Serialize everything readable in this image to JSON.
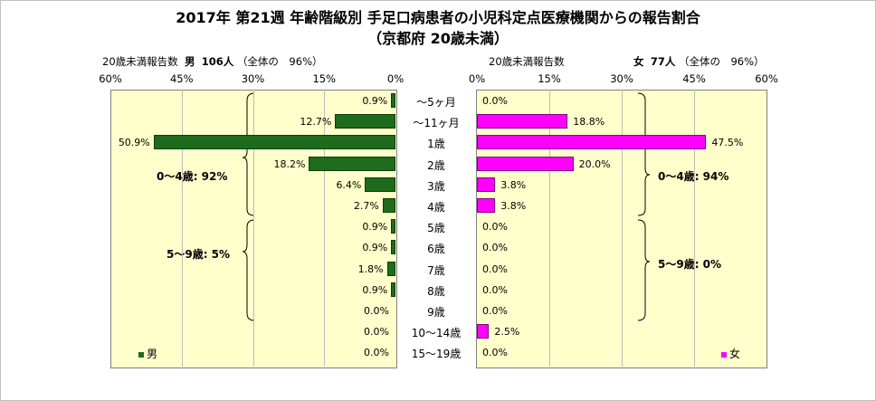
{
  "title_line1": "2017年 第21週 年齢階級別 手足口病患者の小児科定点医療機関からの報告割合",
  "title_line2": "（京都府 20歳未満）",
  "left_header": "20歳未満報告数",
  "left_sex": "男",
  "left_count": "106人",
  "left_share": "（全体の　96%）",
  "right_header": "20歳未満報告数",
  "right_sex": "女",
  "right_count": "77人",
  "right_share": "（全体の　96%）",
  "left_ticks": [
    "60%",
    "45%",
    "30%",
    "15%",
    "0%"
  ],
  "right_ticks": [
    "0%",
    "15%",
    "30%",
    "45%",
    "60%"
  ],
  "left_groups": [
    "0～4歳: 92%",
    "5～9歳: 5%"
  ],
  "right_groups": [
    "0～4歳: 94%",
    "5～9歳: 0%"
  ],
  "legend_male": "男",
  "legend_female": "女",
  "colors": {
    "male": "#1e6b1e",
    "female": "#ff00ff",
    "plot_bg": "#ffffcc"
  },
  "chart_data": {
    "type": "bar",
    "title": "2017年 第21週 年齢階級別 手足口病患者の小児科定点医療機関からの報告割合",
    "subtitle": "（京都府 20歳未満）",
    "categories": [
      "～5ヶ月",
      "～11ヶ月",
      "1歳",
      "2歳",
      "3歳",
      "4歳",
      "5歳",
      "6歳",
      "7歳",
      "8歳",
      "9歳",
      "10～14歳",
      "15～19歳"
    ],
    "series": [
      {
        "name": "男",
        "values": [
          0.9,
          12.7,
          50.9,
          18.2,
          6.4,
          2.7,
          0.9,
          0.9,
          1.8,
          0.9,
          0.0,
          0.0,
          0.0
        ],
        "labels": [
          "0.9%",
          "12.7%",
          "50.9%",
          "18.2%",
          "6.4%",
          "2.7%",
          "0.9%",
          "0.9%",
          "1.8%",
          "0.9%",
          "0.0%",
          "0.0%",
          "0.0%"
        ]
      },
      {
        "name": "女",
        "values": [
          0.0,
          18.8,
          47.5,
          20.0,
          3.8,
          3.8,
          0.0,
          0.0,
          0.0,
          0.0,
          0.0,
          2.5,
          0.0
        ],
        "labels": [
          "0.0%",
          "18.8%",
          "47.5%",
          "20.0%",
          "3.8%",
          "3.8%",
          "0.0%",
          "0.0%",
          "0.0%",
          "0.0%",
          "0.0%",
          "2.5%",
          "0.0%"
        ]
      }
    ],
    "xlim": [
      0,
      60
    ],
    "grid": true
  }
}
